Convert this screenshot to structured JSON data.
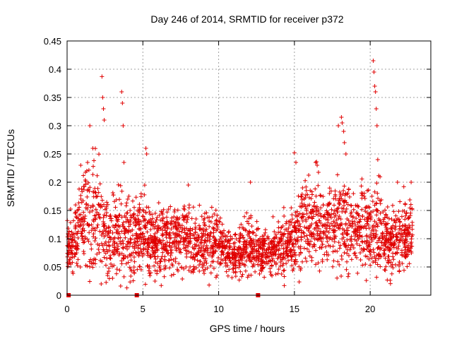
{
  "chart_data": {
    "type": "scatter",
    "title": "Day 246 of 2014, SRMTID for receiver p372",
    "xlabel": "GPS time / hours",
    "ylabel": "SRMTID / TECUs",
    "xlim": [
      0,
      24
    ],
    "ylim": [
      0,
      0.45
    ],
    "xticks": [
      0,
      5,
      10,
      15,
      20
    ],
    "yticks": [
      0,
      0.05,
      0.1,
      0.15,
      0.2,
      0.25,
      0.3,
      0.35,
      0.4,
      0.45
    ],
    "xtick_labels": [
      "0",
      "5",
      "10",
      "15",
      "20"
    ],
    "ytick_labels": [
      "0",
      "0.05",
      "0.1",
      "0.15",
      "0.2",
      "0.25",
      "0.3",
      "0.35",
      "0.4",
      "0.45"
    ],
    "grid": true,
    "marker": "+",
    "color": "#e00000",
    "zero_markers_x": [
      0.1,
      4.6,
      12.6
    ],
    "envelope": [
      [
        0.0,
        0.09,
        0.02
      ],
      [
        0.5,
        0.1,
        0.03
      ],
      [
        1.0,
        0.13,
        0.04
      ],
      [
        1.5,
        0.14,
        0.05
      ],
      [
        2.0,
        0.13,
        0.05
      ],
      [
        2.5,
        0.11,
        0.04
      ],
      [
        3.0,
        0.1,
        0.03
      ],
      [
        3.5,
        0.12,
        0.05
      ],
      [
        4.0,
        0.1,
        0.04
      ],
      [
        4.5,
        0.1,
        0.03
      ],
      [
        5.0,
        0.12,
        0.04
      ],
      [
        5.5,
        0.1,
        0.03
      ],
      [
        6.0,
        0.09,
        0.025
      ],
      [
        6.5,
        0.1,
        0.03
      ],
      [
        7.0,
        0.1,
        0.03
      ],
      [
        7.5,
        0.11,
        0.03
      ],
      [
        8.0,
        0.1,
        0.03
      ],
      [
        8.5,
        0.09,
        0.025
      ],
      [
        9.0,
        0.09,
        0.025
      ],
      [
        9.5,
        0.1,
        0.025
      ],
      [
        10.0,
        0.1,
        0.025
      ],
      [
        10.5,
        0.08,
        0.02
      ],
      [
        11.0,
        0.065,
        0.018
      ],
      [
        11.5,
        0.075,
        0.02
      ],
      [
        12.0,
        0.09,
        0.025
      ],
      [
        12.5,
        0.08,
        0.02
      ],
      [
        13.0,
        0.075,
        0.02
      ],
      [
        13.5,
        0.08,
        0.02
      ],
      [
        14.0,
        0.09,
        0.025
      ],
      [
        14.5,
        0.09,
        0.025
      ],
      [
        15.0,
        0.11,
        0.03
      ],
      [
        15.5,
        0.12,
        0.035
      ],
      [
        16.0,
        0.13,
        0.035
      ],
      [
        16.5,
        0.13,
        0.035
      ],
      [
        17.0,
        0.12,
        0.035
      ],
      [
        17.5,
        0.13,
        0.04
      ],
      [
        18.0,
        0.14,
        0.045
      ],
      [
        18.5,
        0.12,
        0.035
      ],
      [
        19.0,
        0.11,
        0.03
      ],
      [
        19.5,
        0.13,
        0.04
      ],
      [
        20.0,
        0.12,
        0.035
      ],
      [
        20.5,
        0.11,
        0.035
      ],
      [
        21.0,
        0.1,
        0.03
      ],
      [
        21.5,
        0.095,
        0.03
      ],
      [
        22.0,
        0.1,
        0.03
      ],
      [
        22.5,
        0.11,
        0.03
      ],
      [
        22.8,
        0.11,
        0.03
      ]
    ],
    "spikes": [
      [
        1.5,
        0.3
      ],
      [
        1.7,
        0.26
      ],
      [
        2.3,
        0.387
      ],
      [
        2.35,
        0.35
      ],
      [
        2.4,
        0.33
      ],
      [
        2.45,
        0.31
      ],
      [
        3.6,
        0.36
      ],
      [
        3.65,
        0.34
      ],
      [
        3.7,
        0.3
      ],
      [
        3.75,
        0.235
      ],
      [
        5.2,
        0.26
      ],
      [
        5.25,
        0.25
      ],
      [
        15.0,
        0.252
      ],
      [
        15.1,
        0.235
      ],
      [
        16.4,
        0.235
      ],
      [
        16.5,
        0.23
      ],
      [
        17.9,
        0.3
      ],
      [
        18.1,
        0.315
      ],
      [
        18.15,
        0.305
      ],
      [
        18.25,
        0.29
      ],
      [
        18.3,
        0.27
      ],
      [
        18.4,
        0.25
      ],
      [
        20.2,
        0.415
      ],
      [
        20.25,
        0.395
      ],
      [
        20.3,
        0.37
      ],
      [
        20.35,
        0.36
      ],
      [
        20.4,
        0.33
      ],
      [
        20.45,
        0.3
      ],
      [
        20.5,
        0.24
      ],
      [
        21.8,
        0.2
      ],
      [
        22.7,
        0.2
      ],
      [
        12.1,
        0.2
      ],
      [
        8.0,
        0.195
      ],
      [
        3.0,
        0.03
      ],
      [
        2.25,
        0.02
      ],
      [
        5.8,
        0.025
      ],
      [
        1.3,
        0.22
      ],
      [
        0.9,
        0.23
      ],
      [
        4.0,
        0.17
      ]
    ]
  }
}
